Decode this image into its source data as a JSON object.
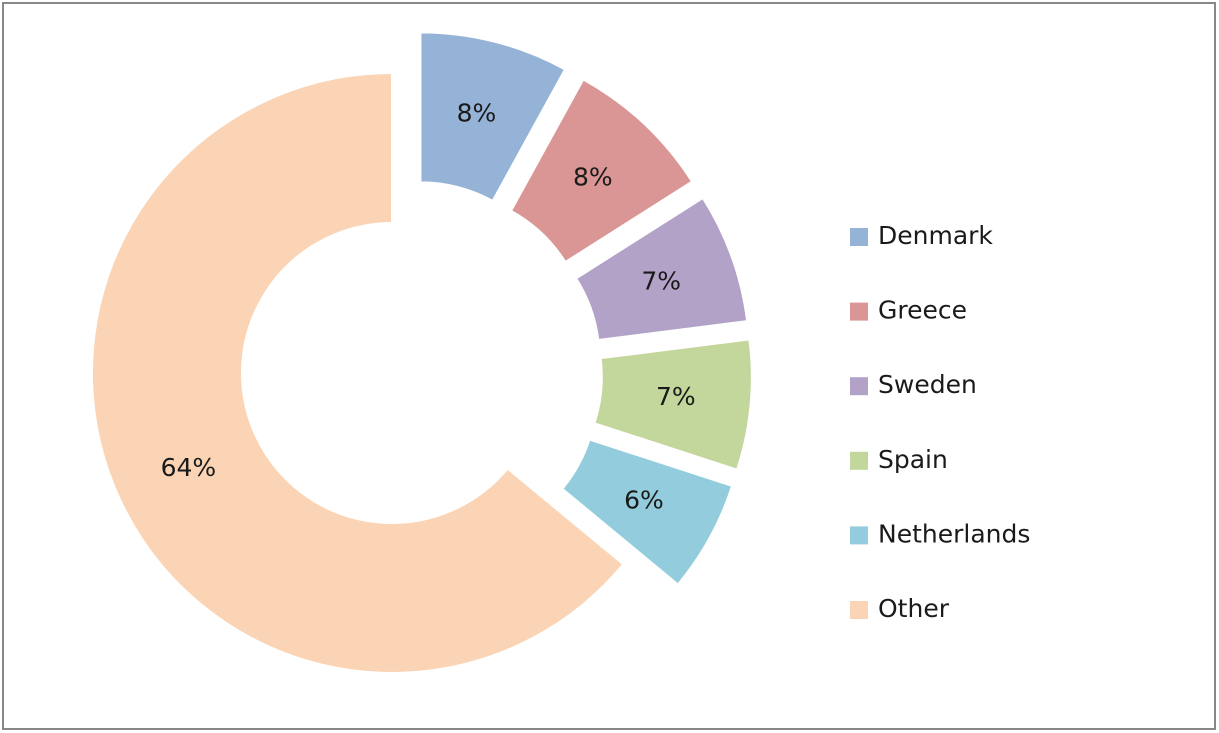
{
  "chart_data": {
    "type": "donut",
    "categories": [
      "Denmark",
      "Greece",
      "Sweden",
      "Spain",
      "Netherlands",
      "Other"
    ],
    "values": [
      8,
      8,
      7,
      7,
      6,
      64
    ],
    "value_labels": [
      "8%",
      "8%",
      "7%",
      "7%",
      "6%",
      "64%"
    ],
    "colors": [
      "#95b3d7",
      "#d99694",
      "#b3a2c7",
      "#c3d69b",
      "#93cddd",
      "#fad4b4"
    ],
    "exploded": [
      true,
      true,
      true,
      true,
      true,
      false
    ],
    "legend": "right"
  }
}
